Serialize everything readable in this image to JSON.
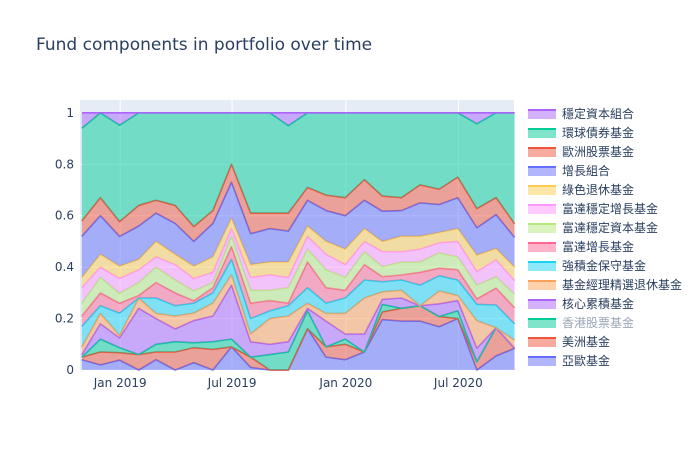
{
  "colors": {
    "plot_bg": "#e5ecf6",
    "grid": "#ffffff",
    "text": "#2a3f5f"
  },
  "chart_data": {
    "type": "area",
    "stacking": "normalized",
    "title": "Fund components in portfolio over time",
    "xlabel": "",
    "ylabel": "",
    "ylim": [
      0,
      1.05
    ],
    "yticks": [
      0,
      0.2,
      0.4,
      0.6,
      0.8,
      1
    ],
    "ytick_labels": [
      "0",
      "0.2",
      "0.4",
      "0.6",
      "0.8",
      "1"
    ],
    "xlim": [
      "2018-10-28",
      "2020-09-29"
    ],
    "xticks": [
      "2019-01-01",
      "2019-07-01",
      "2020-01-01",
      "2020-07-01"
    ],
    "xtick_labels": [
      "Jan 2019",
      "Jul 2019",
      "Jan 2020",
      "Jul 2020"
    ],
    "grid": true,
    "legend_position": "right",
    "x": [
      "2018-10-31",
      "2018-11-30",
      "2018-12-31",
      "2019-01-31",
      "2019-02-28",
      "2019-03-31",
      "2019-04-30",
      "2019-05-31",
      "2019-06-30",
      "2019-07-31",
      "2019-08-31",
      "2019-09-30",
      "2019-10-31",
      "2019-11-30",
      "2019-12-31",
      "2020-01-31",
      "2020-02-29",
      "2020-03-31",
      "2020-04-30",
      "2020-05-31",
      "2020-06-30",
      "2020-07-31",
      "2020-08-31",
      "2020-09-30"
    ],
    "series": [
      {
        "name": "亞歐基金",
        "color": "#636efa",
        "values": [
          0.04,
          0.02,
          0.04,
          0.0,
          0.04,
          0.0,
          0.03,
          0.0,
          0.09,
          0.01,
          0.0,
          0.0,
          0.16,
          0.05,
          0.04,
          0.07,
          0.2,
          0.19,
          0.19,
          0.17,
          0.2,
          0.0,
          0.05,
          0.08
        ]
      },
      {
        "name": "美洲基金",
        "color": "#ef553b",
        "values": [
          0.01,
          0.05,
          0.03,
          0.06,
          0.03,
          0.07,
          0.06,
          0.08,
          0.0,
          0.04,
          0.0,
          0.0,
          0.0,
          0.04,
          0.06,
          0.0,
          0.03,
          0.05,
          0.06,
          0.04,
          0.0,
          0.03,
          0.1,
          0.0
        ]
      },
      {
        "name": "香港股票基金",
        "color": "#00cc96",
        "values": [
          0.0,
          0.05,
          0.02,
          0.0,
          0.03,
          0.04,
          0.02,
          0.03,
          0.03,
          0.0,
          0.06,
          0.07,
          0.07,
          0.0,
          0.02,
          0.0,
          0.03,
          0.0,
          0.0,
          0.0,
          0.03,
          0.0,
          0.0,
          0.0
        ]
      },
      {
        "name": "核心累積基金",
        "color": "#ab63fa",
        "values": [
          0.01,
          0.06,
          0.04,
          0.18,
          0.1,
          0.05,
          0.09,
          0.1,
          0.21,
          0.06,
          0.04,
          0.04,
          0.01,
          0.1,
          0.02,
          0.07,
          0.02,
          0.04,
          0.0,
          0.05,
          0.04,
          0.05,
          0.0,
          0.0
        ]
      },
      {
        "name": "基金經理精選退休基金",
        "color": "#ffa15a",
        "values": [
          0.03,
          0.04,
          0.01,
          0.04,
          0.02,
          0.05,
          0.03,
          0.05,
          0.04,
          0.03,
          0.1,
          0.1,
          0.02,
          0.03,
          0.08,
          0.14,
          0.03,
          0.03,
          0.0,
          0.05,
          0.02,
          0.1,
          0.0,
          0.03
        ]
      },
      {
        "name": "強積金保守基金",
        "color": "#19d3f3",
        "values": [
          0.08,
          0.03,
          0.09,
          0.0,
          0.06,
          0.04,
          0.04,
          0.04,
          0.06,
          0.06,
          0.03,
          0.04,
          0.06,
          0.04,
          0.06,
          0.07,
          0.04,
          0.04,
          0.08,
          0.06,
          0.06,
          0.06,
          0.08,
          0.06
        ]
      },
      {
        "name": "富達增長基金",
        "color": "#ff6692",
        "values": [
          0.04,
          0.05,
          0.04,
          0.01,
          0.06,
          0.05,
          0.01,
          0.02,
          0.05,
          0.06,
          0.04,
          0.01,
          0.1,
          0.06,
          0.03,
          0.06,
          0.02,
          0.02,
          0.05,
          0.03,
          0.04,
          0.02,
          0.06,
          0.06
        ]
      },
      {
        "name": "富達穩定資本基金",
        "color": "#b6e880",
        "values": [
          0.05,
          0.06,
          0.04,
          0.05,
          0.06,
          0.05,
          0.04,
          0.02,
          0.04,
          0.05,
          0.04,
          0.06,
          0.05,
          0.07,
          0.05,
          0.05,
          0.04,
          0.05,
          0.04,
          0.06,
          0.05,
          0.05,
          0.04,
          0.05
        ]
      },
      {
        "name": "富達穩定增長基金",
        "color": "#ff97ff",
        "values": [
          0.06,
          0.04,
          0.06,
          0.05,
          0.04,
          0.06,
          0.05,
          0.04,
          0.03,
          0.05,
          0.06,
          0.04,
          0.05,
          0.06,
          0.05,
          0.04,
          0.06,
          0.04,
          0.05,
          0.04,
          0.06,
          0.05,
          0.06,
          0.05
        ]
      },
      {
        "name": "綠色退休基金",
        "color": "#fecb52",
        "values": [
          0.04,
          0.05,
          0.05,
          0.04,
          0.06,
          0.04,
          0.05,
          0.06,
          0.04,
          0.05,
          0.05,
          0.06,
          0.04,
          0.05,
          0.06,
          0.05,
          0.04,
          0.06,
          0.05,
          0.04,
          0.05,
          0.06,
          0.04,
          0.05
        ]
      },
      {
        "name": "增長組合",
        "color": "#636efa",
        "values": [
          0.16,
          0.15,
          0.12,
          0.13,
          0.11,
          0.12,
          0.1,
          0.13,
          0.14,
          0.12,
          0.13,
          0.12,
          0.1,
          0.12,
          0.13,
          0.11,
          0.12,
          0.1,
          0.13,
          0.11,
          0.12,
          0.1,
          0.12,
          0.11
        ]
      },
      {
        "name": "歐洲股票基金",
        "color": "#ef553b",
        "values": [
          0.06,
          0.07,
          0.06,
          0.08,
          0.05,
          0.07,
          0.06,
          0.05,
          0.07,
          0.08,
          0.06,
          0.07,
          0.05,
          0.06,
          0.07,
          0.08,
          0.06,
          0.05,
          0.07,
          0.06,
          0.08,
          0.07,
          0.06,
          0.05
        ]
      },
      {
        "name": "環球債券基金",
        "color": "#00cc96",
        "values": [
          0.36,
          0.33,
          0.39,
          0.36,
          0.34,
          0.36,
          0.46,
          0.38,
          0.2,
          0.39,
          0.39,
          0.34,
          0.29,
          0.32,
          0.33,
          0.26,
          0.33,
          0.33,
          0.28,
          0.3,
          0.25,
          0.31,
          0.3,
          0.41
        ]
      },
      {
        "name": "穩定資本組合",
        "color": "#ab63fa",
        "values": [
          0.06,
          0.0,
          0.05,
          0.0,
          0.0,
          0.0,
          0.0,
          0.0,
          0.0,
          0.0,
          0.0,
          0.05,
          0.0,
          0.0,
          0.0,
          0.0,
          0.0,
          0.0,
          0.0,
          0.0,
          0.0,
          0.04,
          0.0,
          0.0
        ]
      }
    ]
  }
}
